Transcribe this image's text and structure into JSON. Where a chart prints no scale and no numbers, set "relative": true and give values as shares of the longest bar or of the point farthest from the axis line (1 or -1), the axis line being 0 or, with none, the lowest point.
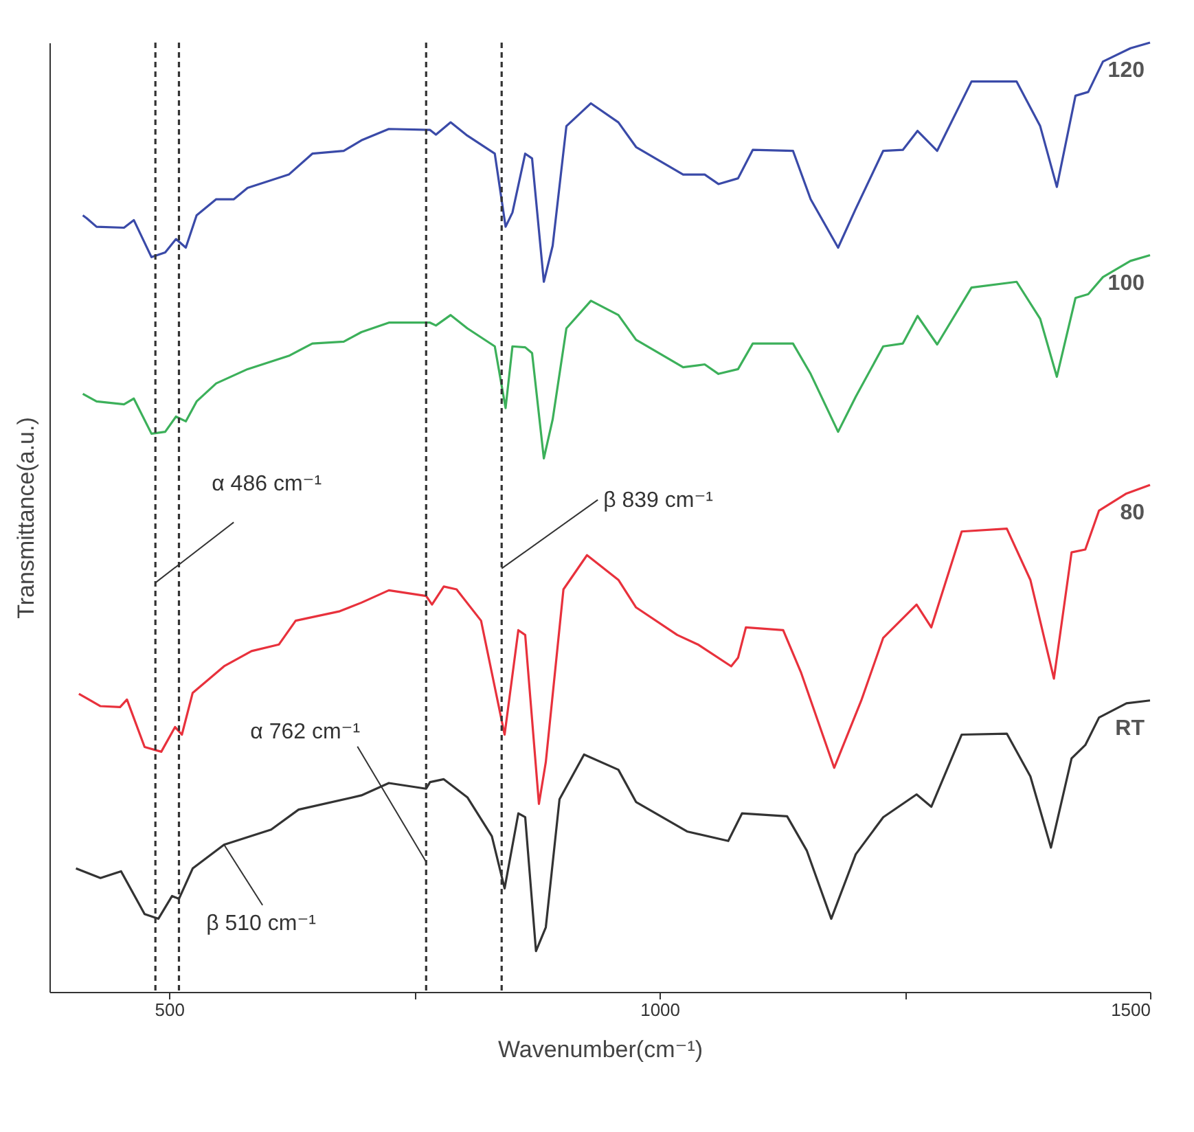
{
  "chart_data": {
    "type": "line",
    "relative": true,
    "xlabel": "Wavenumber(cm⁻¹)",
    "ylabel": "Transmittance(a.u.)",
    "xlim": [
      378,
      1500
    ],
    "xticks": [
      500,
      {
        "value": 750,
        "label": null
      },
      1000,
      {
        "value": 1250,
        "label": null
      },
      1500
    ],
    "tick_labels": "x",
    "grid": false,
    "legend": false,
    "marker": "none",
    "line_style": "solid",
    "series": [
      {
        "name": "120",
        "color": "#3a4aa8",
        "x": [
          412,
          416,
          426,
          454,
          464,
          482,
          496,
          507,
          517,
          528,
          548,
          566,
          580,
          622,
          646,
          678,
          696,
          724,
          766,
          772,
          787,
          804,
          832,
          843,
          850,
          863,
          870,
          882,
          891,
          905,
          930,
          958,
          976,
          1024,
          1046,
          1060,
          1080,
          1095,
          1136,
          1154,
          1182,
          1200,
          1228,
          1248,
          1263,
          1283,
          1318,
          1364,
          1388,
          1405,
          1424,
          1437,
          1452,
          1480,
          1500
        ],
        "values": [
          0.818,
          0.815,
          0.806,
          0.805,
          0.813,
          0.774,
          0.779,
          0.793,
          0.784,
          0.818,
          0.835,
          0.835,
          0.847,
          0.861,
          0.883,
          0.886,
          0.897,
          0.909,
          0.908,
          0.903,
          0.916,
          0.902,
          0.883,
          0.806,
          0.821,
          0.883,
          0.878,
          0.748,
          0.786,
          0.912,
          0.936,
          0.916,
          0.89,
          0.861,
          0.861,
          0.851,
          0.857,
          0.887,
          0.886,
          0.835,
          0.784,
          0.825,
          0.886,
          0.887,
          0.907,
          0.886,
          0.959,
          0.959,
          0.912,
          0.848,
          0.944,
          0.948,
          0.98,
          0.994,
          1.0
        ]
      },
      {
        "name": "100",
        "color": "#3cb05a",
        "x": [
          412,
          426,
          454,
          464,
          482,
          496,
          507,
          517,
          528,
          548,
          580,
          622,
          646,
          678,
          696,
          724,
          766,
          772,
          787,
          804,
          832,
          843,
          850,
          863,
          870,
          882,
          891,
          905,
          930,
          958,
          976,
          1024,
          1046,
          1060,
          1080,
          1095,
          1136,
          1154,
          1182,
          1200,
          1228,
          1248,
          1263,
          1283,
          1318,
          1364,
          1388,
          1405,
          1424,
          1437,
          1452,
          1480,
          1500
        ],
        "values": [
          0.63,
          0.622,
          0.619,
          0.625,
          0.588,
          0.59,
          0.606,
          0.601,
          0.622,
          0.641,
          0.656,
          0.67,
          0.683,
          0.685,
          0.695,
          0.705,
          0.705,
          0.702,
          0.713,
          0.699,
          0.68,
          0.615,
          0.68,
          0.679,
          0.673,
          0.562,
          0.603,
          0.699,
          0.728,
          0.713,
          0.687,
          0.658,
          0.661,
          0.651,
          0.656,
          0.683,
          0.683,
          0.651,
          0.59,
          0.627,
          0.68,
          0.683,
          0.712,
          0.682,
          0.742,
          0.748,
          0.709,
          0.648,
          0.731,
          0.735,
          0.753,
          0.77,
          0.776
        ]
      },
      {
        "name": "80",
        "color": "#e8313c",
        "x": [
          408,
          430,
          450,
          457,
          475,
          492,
          506,
          513,
          524,
          556,
          584,
          612,
          629,
          674,
          696,
          724,
          762,
          768,
          780,
          793,
          818,
          842,
          856,
          863,
          877,
          884,
          902,
          926,
          958,
          976,
          1018,
          1039,
          1073,
          1080,
          1088,
          1126,
          1144,
          1178,
          1206,
          1228,
          1262,
          1277,
          1308,
          1354,
          1378,
          1402,
          1420,
          1434,
          1448,
          1476,
          1500
        ],
        "values": [
          0.314,
          0.301,
          0.3,
          0.308,
          0.258,
          0.253,
          0.279,
          0.271,
          0.315,
          0.343,
          0.359,
          0.366,
          0.391,
          0.401,
          0.41,
          0.423,
          0.417,
          0.408,
          0.427,
          0.424,
          0.391,
          0.271,
          0.381,
          0.376,
          0.198,
          0.242,
          0.424,
          0.46,
          0.434,
          0.405,
          0.376,
          0.366,
          0.343,
          0.352,
          0.384,
          0.381,
          0.337,
          0.236,
          0.308,
          0.373,
          0.408,
          0.384,
          0.485,
          0.488,
          0.434,
          0.33,
          0.463,
          0.466,
          0.507,
          0.525,
          0.534
        ]
      },
      {
        "name": "RT",
        "color": "#333333",
        "x": [
          405,
          430,
          451,
          475,
          489,
          503,
          510,
          524,
          556,
          604,
          632,
          696,
          724,
          762,
          766,
          780,
          804,
          829,
          842,
          856,
          863,
          874,
          884,
          898,
          923,
          958,
          976,
          1028,
          1070,
          1084,
          1130,
          1150,
          1175,
          1200,
          1228,
          1262,
          1277,
          1308,
          1354,
          1378,
          1399,
          1420,
          1434,
          1448,
          1476,
          1500
        ],
        "values": [
          0.13,
          0.12,
          0.127,
          0.082,
          0.077,
          0.101,
          0.098,
          0.13,
          0.155,
          0.171,
          0.192,
          0.207,
          0.22,
          0.214,
          0.221,
          0.224,
          0.205,
          0.164,
          0.109,
          0.188,
          0.184,
          0.043,
          0.068,
          0.203,
          0.25,
          0.234,
          0.2,
          0.169,
          0.159,
          0.188,
          0.185,
          0.149,
          0.077,
          0.145,
          0.184,
          0.208,
          0.195,
          0.271,
          0.272,
          0.227,
          0.152,
          0.246,
          0.26,
          0.289,
          0.304,
          0.307
        ]
      }
    ],
    "ref_lines": [
      {
        "axis": "x",
        "value": 486,
        "color": "#333333",
        "line_style": "dashed"
      },
      {
        "axis": "x",
        "value": 510,
        "color": "#333333",
        "line_style": "dashed"
      },
      {
        "axis": "x",
        "value": 762,
        "color": "#333333",
        "line_style": "dashed"
      },
      {
        "axis": "x",
        "value": 839,
        "color": "#333333",
        "line_style": "dashed"
      }
    ],
    "annotations": [
      {
        "text": "α 486 cm⁻¹",
        "x": 486,
        "y": 0.431
      },
      {
        "text": "β 839 cm⁻¹",
        "x": 839,
        "y": 0.446
      },
      {
        "text": "α 762 cm⁻¹",
        "x": 762,
        "y": 0.137
      },
      {
        "text": "β 510 cm⁻¹",
        "x": 556,
        "y": 0.155
      }
    ]
  }
}
